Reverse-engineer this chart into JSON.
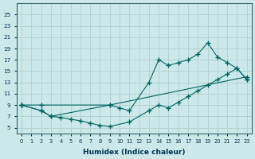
{
  "xlabel": "Humidex (Indice chaleur)",
  "bg_color": "#cce8e8",
  "line_color": "#006666",
  "grid_color": "#b0d0d0",
  "xlim": [
    -0.5,
    23.5
  ],
  "ylim": [
    4,
    27
  ],
  "xticks": [
    0,
    1,
    2,
    3,
    4,
    5,
    6,
    7,
    8,
    9,
    10,
    11,
    12,
    13,
    14,
    15,
    16,
    17,
    18,
    19,
    20,
    21,
    22,
    23
  ],
  "yticks": [
    5,
    7,
    9,
    11,
    13,
    15,
    17,
    19,
    21,
    23,
    25
  ],
  "line1_x": [
    0,
    2,
    9,
    23
  ],
  "line1_y": [
    9,
    9,
    9,
    14
  ],
  "line2_x": [
    0,
    2,
    3,
    9,
    10,
    11,
    13,
    14,
    15,
    16,
    17,
    18,
    19,
    20,
    21,
    22,
    23
  ],
  "line2_y": [
    9,
    8,
    7,
    9,
    8.5,
    8,
    13,
    17,
    16,
    16.5,
    17,
    18,
    20,
    17.5,
    16.5,
    15.5,
    13.5
  ],
  "line3_x": [
    0,
    2,
    3,
    4,
    5,
    6,
    7,
    8,
    9,
    11,
    13,
    14,
    15,
    16,
    17,
    18,
    19,
    20,
    21,
    22,
    23
  ],
  "line3_y": [
    9,
    8,
    7,
    6.8,
    6.5,
    6.2,
    5.8,
    5.4,
    5.2,
    6,
    8,
    9,
    8.5,
    9.5,
    10.5,
    11.5,
    12.5,
    13.5,
    14.5,
    15.5,
    13.5
  ],
  "figsize": [
    3.2,
    2.0
  ],
  "dpi": 100
}
